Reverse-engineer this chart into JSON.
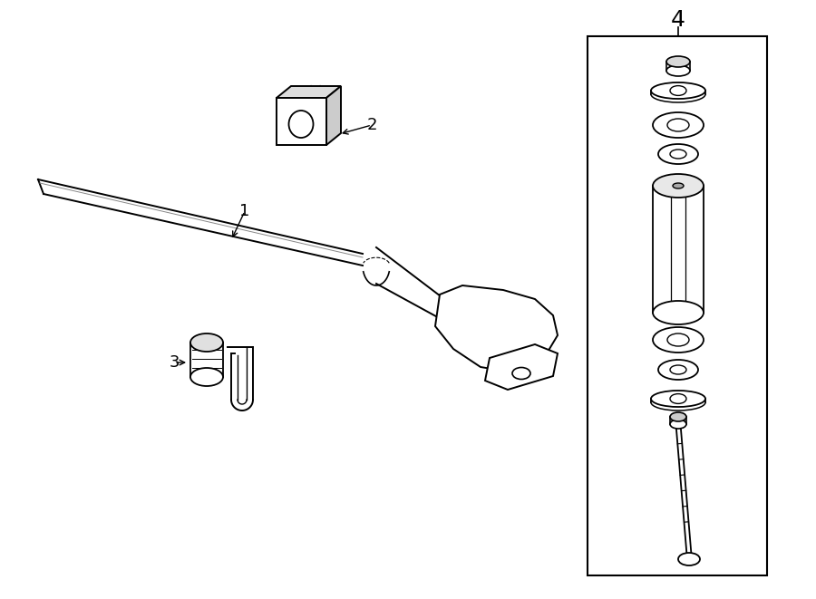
{
  "bg_color": "#ffffff",
  "line_color": "#000000",
  "fig_width": 9.0,
  "fig_height": 6.61,
  "dpi": 100,
  "parts": {
    "bar_label": "1",
    "bushing_label": "2",
    "clamp_label": "3",
    "assembly_label": "4"
  }
}
